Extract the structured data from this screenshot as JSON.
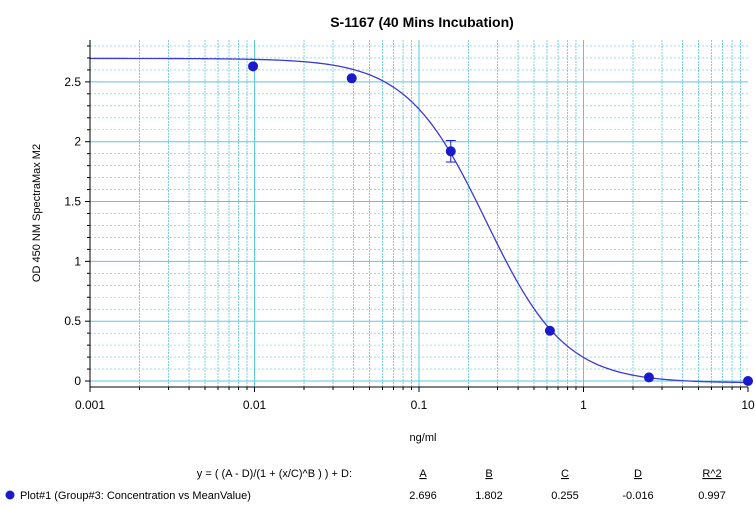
{
  "chart_data": {
    "type": "scatter",
    "title": "S-1167 (40 Mins Incubation)",
    "xlabel": "ng/ml",
    "ylabel": "OD 450 NM SpectraMax M2",
    "xscale": "log",
    "xlim": [
      0.001,
      10
    ],
    "ylim": [
      -0.05,
      2.85
    ],
    "grid": true,
    "x_ticks": [
      "0.001",
      "0.01",
      "0.1",
      "1",
      "10"
    ],
    "y_ticks": [
      "0",
      "0.5",
      "1",
      "1.5",
      "2",
      "2.5"
    ],
    "series": [
      {
        "name": "Plot#1 (Group#3: Concentration vs MeanValue)",
        "points": [
          {
            "x": 0.0098,
            "y": 2.63,
            "err": 0
          },
          {
            "x": 0.039,
            "y": 2.53,
            "err": 0
          },
          {
            "x": 0.156,
            "y": 1.92,
            "err": 0.09
          },
          {
            "x": 0.625,
            "y": 0.42,
            "err": 0
          },
          {
            "x": 2.5,
            "y": 0.03,
            "err": 0
          },
          {
            "x": 10,
            "y": 0.0,
            "err": 0
          }
        ]
      }
    ],
    "fit": {
      "equation": "y = ( (A - D)/(1 + (x/C)^B ) ) + D:",
      "params": [
        {
          "name": "A",
          "value": "2.696"
        },
        {
          "name": "B",
          "value": "1.802"
        },
        {
          "name": "C",
          "value": "0.255"
        },
        {
          "name": "D",
          "value": "-0.016"
        },
        {
          "name": "R^2",
          "value": "0.997"
        }
      ],
      "A": 2.696,
      "B": 1.802,
      "C": 0.255,
      "D": -0.016
    },
    "colors": {
      "grid": "#5bc8e0",
      "curve": "#3a3ad8",
      "points": "#1a1acc",
      "axis": "#000000"
    }
  }
}
